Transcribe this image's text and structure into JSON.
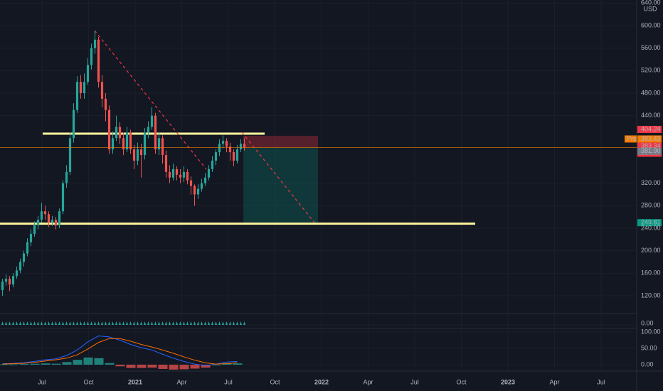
{
  "chart_data": {
    "type": "candlestick",
    "currency": "USD",
    "ylim": [
      88.4,
      645.5
    ],
    "yticks": [
      {
        "value": 120,
        "label": "120.00"
      },
      {
        "value": 160,
        "label": "160.00"
      },
      {
        "value": 200,
        "label": "200.00"
      },
      {
        "value": 240,
        "label": "240.00"
      },
      {
        "value": 280,
        "label": "280.00"
      },
      {
        "value": 320,
        "label": "320.00"
      },
      {
        "value": 440,
        "label": "440.00"
      },
      {
        "value": 480,
        "label": "480.00"
      },
      {
        "value": 520,
        "label": "520.00"
      },
      {
        "value": 560,
        "label": "560.00"
      },
      {
        "value": 600,
        "label": "600.00"
      },
      {
        "value": 640,
        "label": "640.00"
      }
    ],
    "xticks": [
      "Jul",
      "Oct",
      "2021",
      "Apr",
      "Jul",
      "Oct",
      "2022",
      "Apr",
      "Jul",
      "Oct",
      "2023",
      "Apr",
      "Jul"
    ],
    "up_color": "#26a69a",
    "down_color": "#ef5350",
    "open": [
      130,
      145,
      150,
      140,
      155,
      165,
      180,
      195,
      215,
      230,
      245,
      255,
      270,
      265,
      250,
      255,
      245,
      270,
      320,
      340,
      400,
      450,
      500,
      480,
      500,
      530,
      560,
      575,
      500,
      470,
      450,
      380,
      400,
      420,
      400,
      380,
      410,
      380,
      360,
      380,
      370,
      410,
      420,
      440,
      380,
      400,
      370,
      340,
      330,
      345,
      335,
      330,
      340,
      325,
      315,
      300,
      310,
      320,
      330,
      345,
      360,
      375,
      390,
      395,
      385,
      375,
      360,
      380,
      390
    ],
    "high": [
      150,
      158,
      155,
      160,
      172,
      186,
      200,
      222,
      238,
      252,
      262,
      285,
      280,
      270,
      262,
      260,
      275,
      325,
      352,
      410,
      462,
      510,
      512,
      515,
      542,
      568,
      591,
      580,
      512,
      480,
      458,
      412,
      440,
      428,
      410,
      420,
      415,
      388,
      392,
      390,
      418,
      430,
      455,
      445,
      410,
      405,
      378,
      352,
      355,
      350,
      345,
      350,
      345,
      332,
      318,
      318,
      328,
      338,
      352,
      368,
      380,
      398,
      405,
      400,
      392,
      380,
      388,
      398,
      400
    ],
    "low": [
      120,
      138,
      128,
      135,
      150,
      160,
      172,
      190,
      208,
      225,
      238,
      250,
      255,
      242,
      244,
      238,
      240,
      265,
      312,
      335,
      392,
      445,
      470,
      470,
      495,
      522,
      550,
      490,
      455,
      430,
      372,
      372,
      395,
      390,
      370,
      375,
      372,
      345,
      352,
      330,
      362,
      400,
      415,
      372,
      370,
      355,
      330,
      320,
      325,
      325,
      320,
      322,
      318,
      300,
      280,
      292,
      305,
      315,
      325,
      340,
      352,
      368,
      382,
      375,
      360,
      350,
      355,
      375,
      378
    ],
    "close": [
      145,
      150,
      140,
      155,
      165,
      180,
      195,
      215,
      230,
      245,
      255,
      270,
      265,
      250,
      255,
      245,
      270,
      320,
      340,
      400,
      450,
      500,
      480,
      500,
      530,
      560,
      575,
      500,
      470,
      450,
      380,
      400,
      420,
      400,
      380,
      410,
      380,
      360,
      380,
      370,
      410,
      420,
      440,
      380,
      400,
      370,
      340,
      330,
      345,
      335,
      330,
      340,
      325,
      315,
      300,
      310,
      320,
      330,
      345,
      360,
      375,
      390,
      395,
      385,
      375,
      360,
      380,
      390,
      383.34
    ],
    "levels": [
      {
        "value": 408,
        "color": "#fff59d"
      },
      {
        "value": 248,
        "color": "#fff59d"
      }
    ],
    "price_tags": [
      {
        "value": 404.24,
        "color": "#f23645"
      },
      {
        "value": 383.43,
        "color": "#f57c00",
        "prefix": "Pre"
      },
      {
        "value": 383.34,
        "color": "#f23645",
        "sub": "3d 7h"
      },
      {
        "value": 381.9,
        "label": "381.90",
        "color": "#787b86"
      },
      {
        "value": 249.81,
        "color": "#089981"
      }
    ],
    "volume_pane": {
      "yticks": [
        {
          "value": 0,
          "label": "0.00"
        }
      ]
    },
    "macd_pane": {
      "ylim": [
        -19.6,
        110.9
      ],
      "yticks": [
        {
          "value": 0,
          "label": "0.00"
        },
        {
          "value": 50,
          "label": "50.00"
        },
        {
          "value": 100,
          "label": "100.00"
        }
      ],
      "macd": {
        "color": "#2962ff",
        "values": [
          3,
          4,
          6,
          10,
          15,
          18,
          28,
          45,
          70,
          88,
          85,
          75,
          62,
          52,
          45,
          32,
          20,
          10,
          2,
          -3,
          2,
          8,
          10
        ]
      },
      "signal": {
        "color": "#ff6d00",
        "values": [
          2,
          3,
          4,
          7,
          11,
          15,
          20,
          30,
          48,
          68,
          80,
          80,
          72,
          62,
          54,
          45,
          35,
          24,
          14,
          6,
          2,
          3,
          6
        ]
      },
      "histogram": [
        1,
        1,
        2,
        3,
        4,
        3,
        8,
        15,
        22,
        20,
        5,
        -5,
        -10,
        -10,
        -9,
        -13,
        -15,
        -14,
        -12,
        -9,
        0,
        5,
        4
      ]
    }
  }
}
